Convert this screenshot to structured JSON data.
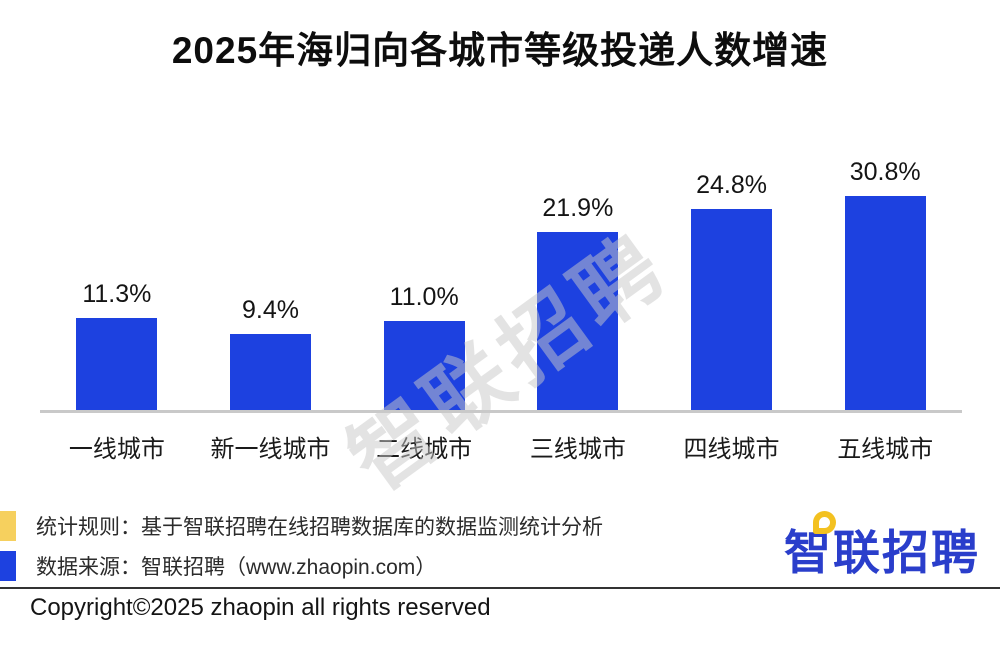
{
  "title": "2025年海归向各城市等级投递人数增速",
  "chart_data": {
    "type": "bar",
    "title": "2025年海归向各城市等级投递人数增速",
    "categories": [
      "一线城市",
      "新一线城市",
      "二线城市",
      "三线城市",
      "四线城市",
      "五线城市"
    ],
    "values": [
      11.3,
      9.4,
      11.0,
      21.9,
      24.8,
      30.8
    ],
    "value_labels": [
      "11.3%",
      "9.4%",
      "11.0%",
      "21.9%",
      "24.8%",
      "30.8%"
    ],
    "xlabel": "",
    "ylabel": "",
    "ylim": [
      0,
      33
    ],
    "grid": false,
    "legend": "none",
    "bar_color": "#1d41e0",
    "axis_line_color": "#c9c9c9"
  },
  "watermark": "智联招聘",
  "footer": {
    "notes": [
      {
        "marker_color": "#f6d05e",
        "text": "统计规则：基于智联招聘在线招聘数据库的数据监测统计分析"
      },
      {
        "marker_color": "#1d41e0",
        "text": "数据来源：智联招聘（www.zhaopin.com）"
      }
    ],
    "logo_text": "智联招聘",
    "logo_color": "#2a3ecb",
    "logo_pin_color": "#f3c120",
    "copyright": "Copyright©2025 zhaopin all rights reserved"
  }
}
